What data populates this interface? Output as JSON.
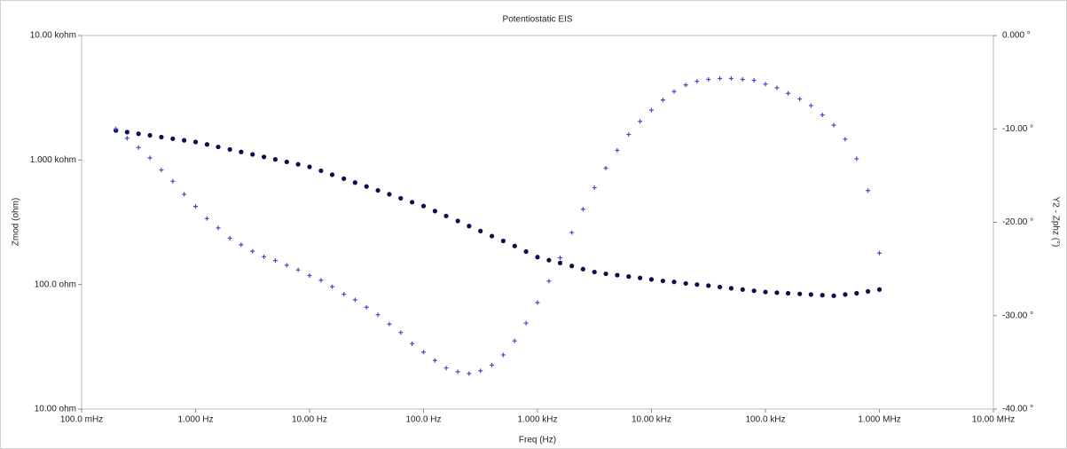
{
  "chart_data": {
    "type": "bode",
    "title": "Potentiostatic EIS",
    "x_label": "Freq (Hz)",
    "y_label": "Zmod (ohm)",
    "y2_label": "Y2 - Zphz (°)",
    "xscale": "log",
    "yscale": "log",
    "xlim": [
      0.1,
      10000000
    ],
    "ylim": [
      10,
      10000
    ],
    "y2lim": [
      -40,
      0
    ],
    "xticks": [
      {
        "value": 0.1,
        "label": "100.0 mHz"
      },
      {
        "value": 1,
        "label": "1.000 Hz"
      },
      {
        "value": 10,
        "label": "10.00 Hz"
      },
      {
        "value": 100,
        "label": "100.0 Hz"
      },
      {
        "value": 1000,
        "label": "1.000 kHz"
      },
      {
        "value": 10000,
        "label": "10.00 kHz"
      },
      {
        "value": 100000,
        "label": "100.0 kHz"
      },
      {
        "value": 1000000,
        "label": "1.000 MHz"
      },
      {
        "value": 10000000,
        "label": "10.00 MHz"
      }
    ],
    "yticks": [
      {
        "value": 10,
        "label": "10.00 ohm"
      },
      {
        "value": 100,
        "label": "100.0 ohm"
      },
      {
        "value": 1000,
        "label": "1.000 kohm"
      },
      {
        "value": 10000,
        "label": "10.00 kohm"
      }
    ],
    "y2ticks": [
      {
        "value": -40,
        "label": "-40.00 °"
      },
      {
        "value": -30,
        "label": "-30.00 °"
      },
      {
        "value": -20,
        "label": "-20.00 °"
      },
      {
        "value": -10,
        "label": "-10.00 °"
      },
      {
        "value": 0,
        "label": "0.000 °"
      }
    ],
    "x": [
      0.2,
      0.251,
      0.316,
      0.398,
      0.501,
      0.631,
      0.794,
      1,
      1.26,
      1.58,
      2,
      2.51,
      3.16,
      3.98,
      5.01,
      6.31,
      7.94,
      10,
      12.6,
      15.8,
      20,
      25.1,
      31.6,
      39.8,
      50.1,
      63.1,
      79.4,
      100,
      126,
      158,
      200,
      251,
      316,
      398,
      501,
      631,
      794,
      1000,
      1260,
      1580,
      2000,
      2510,
      3160,
      3980,
      5010,
      6310,
      7940,
      10000,
      12600,
      15800,
      20000,
      25100,
      31600,
      39800,
      50100,
      63100,
      79400,
      100000,
      126000,
      158000,
      200000,
      251000,
      316000,
      398000,
      501000,
      631000,
      794000,
      1000000
    ],
    "series": [
      {
        "color": "#0b0b4f",
        "marker": "dot",
        "values": [
          1726,
          1675,
          1625,
          1578,
          1528,
          1483,
          1439,
          1396,
          1334,
          1274,
          1216,
          1161,
          1109,
          1059,
          1012,
          966,
          923,
          881,
          820,
          762,
          709,
          659,
          613,
          570,
          531,
          493,
          459,
          427,
          389,
          355,
          324,
          295,
          269,
          245,
          224,
          204,
          184,
          166,
          157,
          149,
          141,
          133,
          126,
          122,
          119,
          116,
          113,
          110,
          107,
          105,
          102,
          100,
          98,
          95.5,
          93.3,
          91.2,
          89.1,
          87.1,
          86.1,
          85.1,
          84.1,
          83.2,
          82.2,
          81.3,
          83.2,
          85.1,
          88.1,
          91.2
        ]
      },
      {
        "color": "#4545d6",
        "marker": "plus",
        "axis": "y2",
        "values": [
          -10,
          -11,
          -12,
          -13.1,
          -14.4,
          -15.6,
          -17,
          -18.3,
          -19.6,
          -20.6,
          -21.7,
          -22.4,
          -23.1,
          -23.7,
          -24.1,
          -24.6,
          -25.1,
          -25.7,
          -26.2,
          -26.9,
          -27.7,
          -28.3,
          -29.1,
          -29.9,
          -30.9,
          -31.8,
          -33,
          -33.9,
          -34.8,
          -35.6,
          -36,
          -36.2,
          -35.9,
          -35.3,
          -34.2,
          -32.7,
          -30.8,
          -28.6,
          -26.3,
          -23.8,
          -21.1,
          -18.6,
          -16.3,
          -14.2,
          -12.3,
          -10.6,
          -9.2,
          -8,
          -6.9,
          -6,
          -5.3,
          -4.9,
          -4.7,
          -4.6,
          -4.6,
          -4.7,
          -4.8,
          -5.2,
          -5.6,
          -6.2,
          -6.8,
          -7.5,
          -8.5,
          -9.6,
          -11.1,
          -13.2,
          -16.6,
          -23.3
        ]
      }
    ]
  }
}
